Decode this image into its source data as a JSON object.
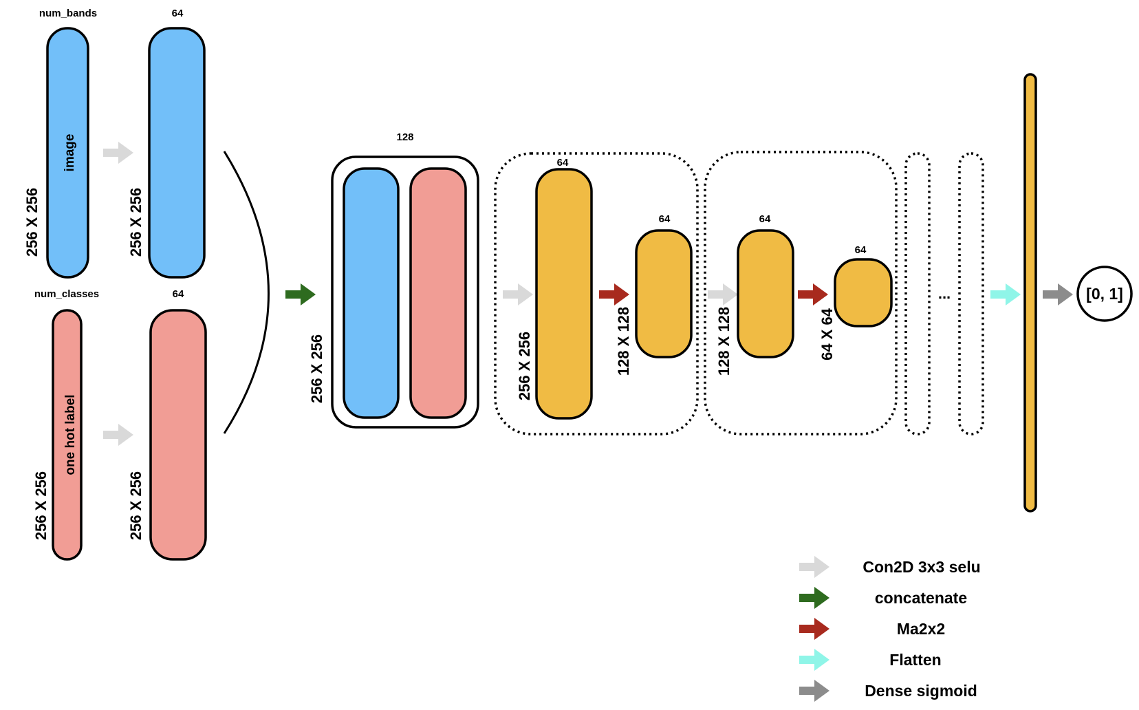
{
  "inputs": {
    "image": {
      "top_label": "num_bands",
      "inner_label": "image",
      "dim": "256 X 256"
    },
    "label": {
      "top_label": "num_classes",
      "inner_label": "one hot label",
      "dim": "256 X 256"
    }
  },
  "conv_image": {
    "channels": "64",
    "dim": "256 X 256"
  },
  "conv_label": {
    "channels": "64",
    "dim": "256 X 256"
  },
  "concat_block": {
    "channels": "128",
    "dim": "256 X 256"
  },
  "block1": {
    "conv": {
      "channels": "64",
      "dim": "256 X 256"
    },
    "pool": {
      "channels": "64",
      "dim": "128 X 128"
    }
  },
  "block2": {
    "conv": {
      "channels": "64",
      "dim": "128 X 128"
    },
    "pool": {
      "channels": "64",
      "dim": "64 X 64"
    }
  },
  "ellipsis": "...",
  "output": "[0, 1]",
  "legend": [
    {
      "label": "Con2D 3x3 selu",
      "color": "#d9d9d9"
    },
    {
      "label": "concatenate",
      "color": "#2e6b1f"
    },
    {
      "label": "Ma2x2",
      "color": "#a82a1e"
    },
    {
      "label": "Flatten",
      "color": "#8ff5e8"
    },
    {
      "label": "Dense sigmoid",
      "color": "#8c8c8c"
    }
  ],
  "colors": {
    "blue": "#72bff9",
    "salmon": "#f19d95",
    "yellow": "#f0bb44",
    "conv_arrow": "#d9d9d9",
    "concat_arrow": "#2e6b1f",
    "pool_arrow": "#a82a1e",
    "flatten_arrow": "#8ff5e8",
    "dense_arrow": "#8c8c8c"
  }
}
